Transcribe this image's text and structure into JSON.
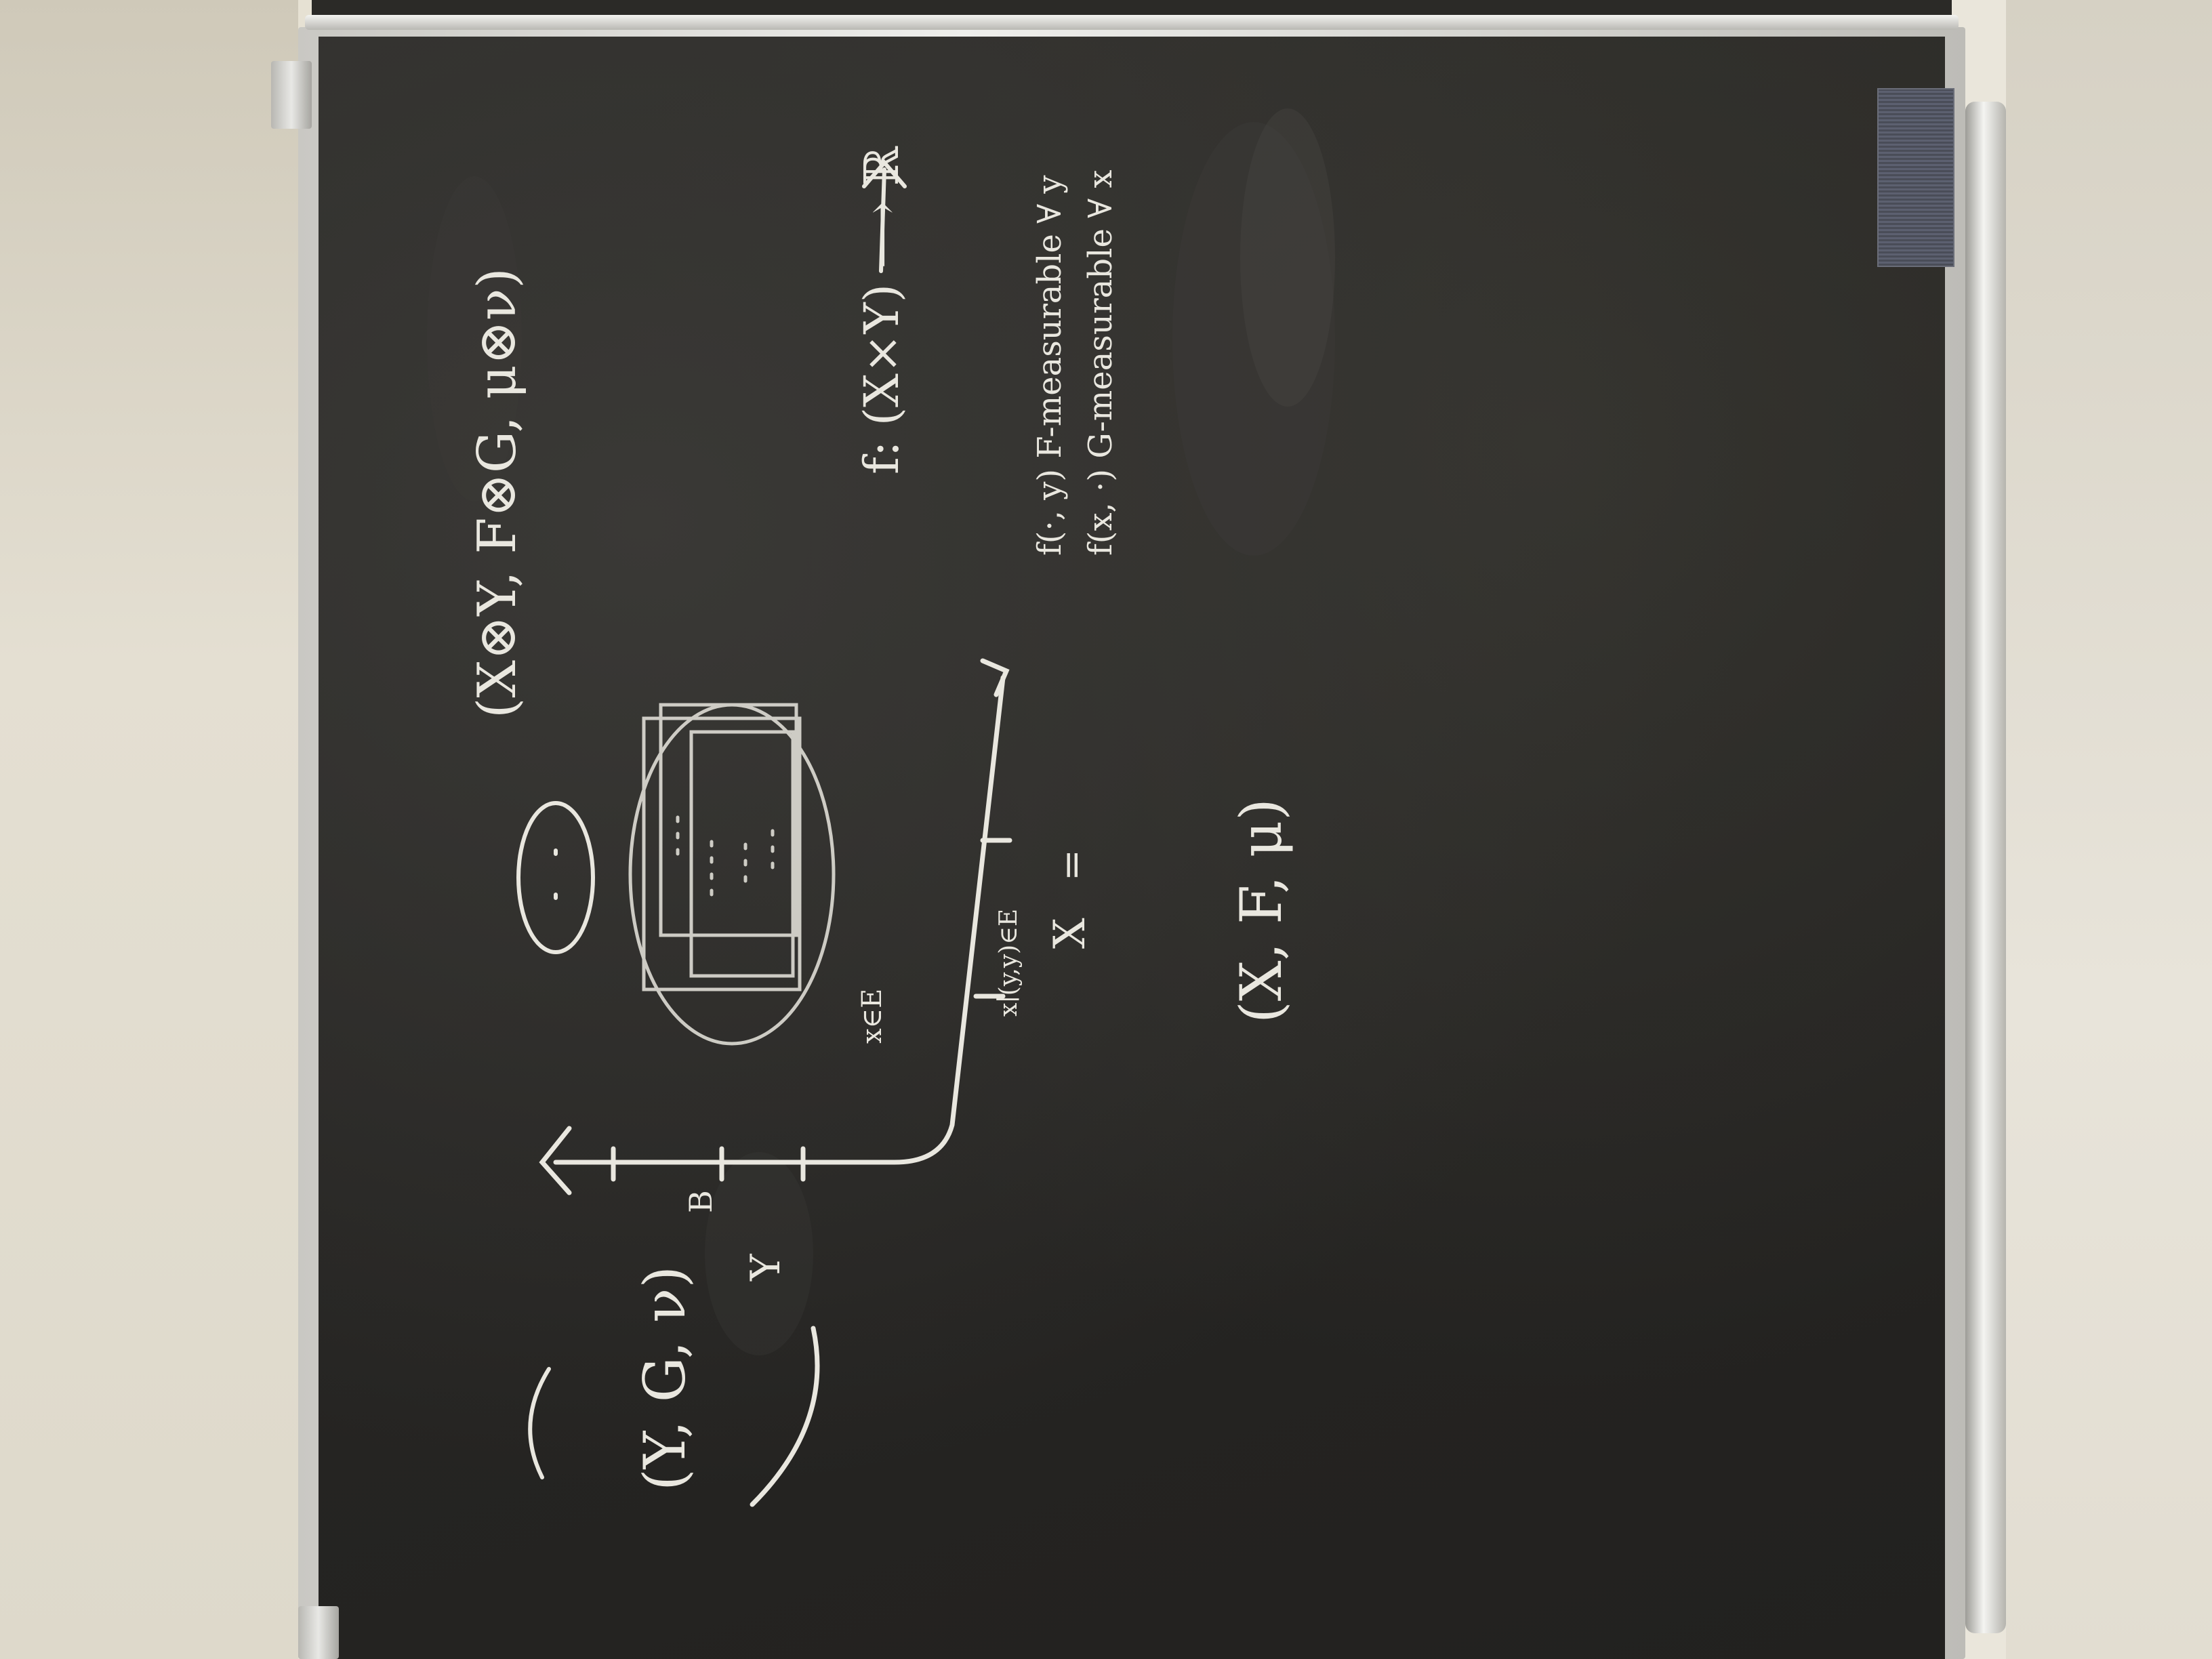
{
  "scene": {
    "description_free": true,
    "colors": {
      "board": "#282725",
      "chalk": "#e9e7df",
      "frame": "#d8d7d2",
      "wall": "#e6e1d3"
    }
  },
  "chalk_text": {
    "product_space": "(X⊗Y, F⊗G, μ⊗ν)",
    "measure_space_1": "(X, F, μ)",
    "measure_space_2": "(Y, G, ν)",
    "function_domain": "f: (X×Y) ⟶ ℝ",
    "section_y": "f(·, y) F-measurable ∀ y",
    "section_x": "f(x, ·) G-measurable ∀ x",
    "axis_label_x": "X",
    "axis_label_y": "Y",
    "axis_mark_b": "B",
    "x_element": "x∈E",
    "section_notation": "x∣(y,y)∈E",
    "equals": "="
  }
}
